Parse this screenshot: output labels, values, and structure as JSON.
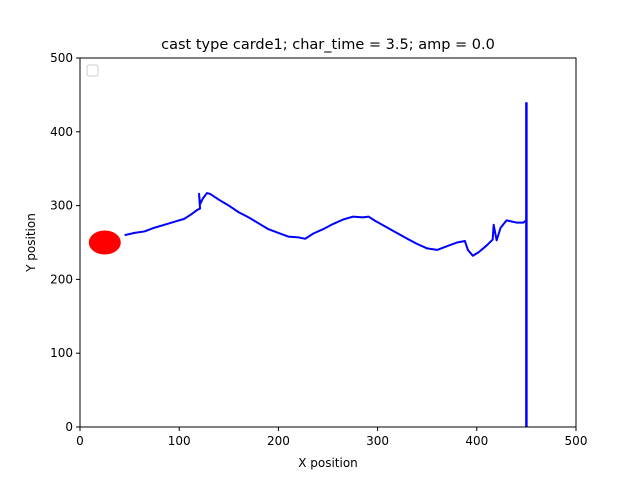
{
  "chart_data": {
    "type": "line",
    "title": "cast type carde1; char_time = 3.5; amp = 0.0",
    "xlabel": "X position",
    "ylabel": "Y position",
    "xlim": [
      0,
      500
    ],
    "ylim": [
      0,
      500
    ],
    "xticks": [
      0,
      100,
      200,
      300,
      400,
      500
    ],
    "yticks": [
      0,
      100,
      200,
      300,
      400,
      500
    ],
    "grid": false,
    "legend": {
      "placement": "top-left",
      "entries": []
    },
    "series": [
      {
        "color": "#0000ff",
        "style": "line",
        "points": [
          [
            45,
            260
          ],
          [
            55,
            263
          ],
          [
            65,
            265
          ],
          [
            75,
            270
          ],
          [
            85,
            274
          ],
          [
            95,
            278
          ],
          [
            105,
            282
          ],
          [
            112,
            288
          ],
          [
            118,
            294
          ],
          [
            121,
            296
          ],
          [
            120,
            316
          ],
          [
            121,
            302
          ],
          [
            124,
            310
          ],
          [
            128,
            317
          ],
          [
            131,
            316
          ],
          [
            140,
            308
          ],
          [
            150,
            300
          ],
          [
            160,
            291
          ],
          [
            170,
            284
          ],
          [
            180,
            276
          ],
          [
            190,
            268
          ],
          [
            200,
            263
          ],
          [
            210,
            258
          ],
          [
            220,
            257
          ],
          [
            227,
            255
          ],
          [
            235,
            262
          ],
          [
            245,
            268
          ],
          [
            255,
            275
          ],
          [
            265,
            281
          ],
          [
            275,
            285
          ],
          [
            285,
            284
          ],
          [
            291,
            285
          ],
          [
            298,
            279
          ],
          [
            310,
            270
          ],
          [
            322,
            261
          ],
          [
            330,
            255
          ],
          [
            340,
            248
          ],
          [
            350,
            242
          ],
          [
            360,
            240
          ],
          [
            370,
            245
          ],
          [
            380,
            250
          ],
          [
            388,
            252
          ],
          [
            391,
            240
          ],
          [
            396,
            232
          ],
          [
            402,
            237
          ],
          [
            410,
            246
          ],
          [
            416,
            254
          ],
          [
            417,
            274
          ],
          [
            420,
            253
          ],
          [
            424,
            270
          ],
          [
            430,
            280
          ],
          [
            440,
            277
          ],
          [
            447,
            277
          ],
          [
            450,
            280
          ]
        ]
      },
      {
        "color": "#0000ff",
        "style": "line",
        "points": [
          [
            450,
            0
          ],
          [
            450,
            440
          ]
        ]
      },
      {
        "color": "#ff0000",
        "style": "marker",
        "marker": "ellipse",
        "points": [
          [
            25,
            250
          ]
        ]
      }
    ]
  }
}
